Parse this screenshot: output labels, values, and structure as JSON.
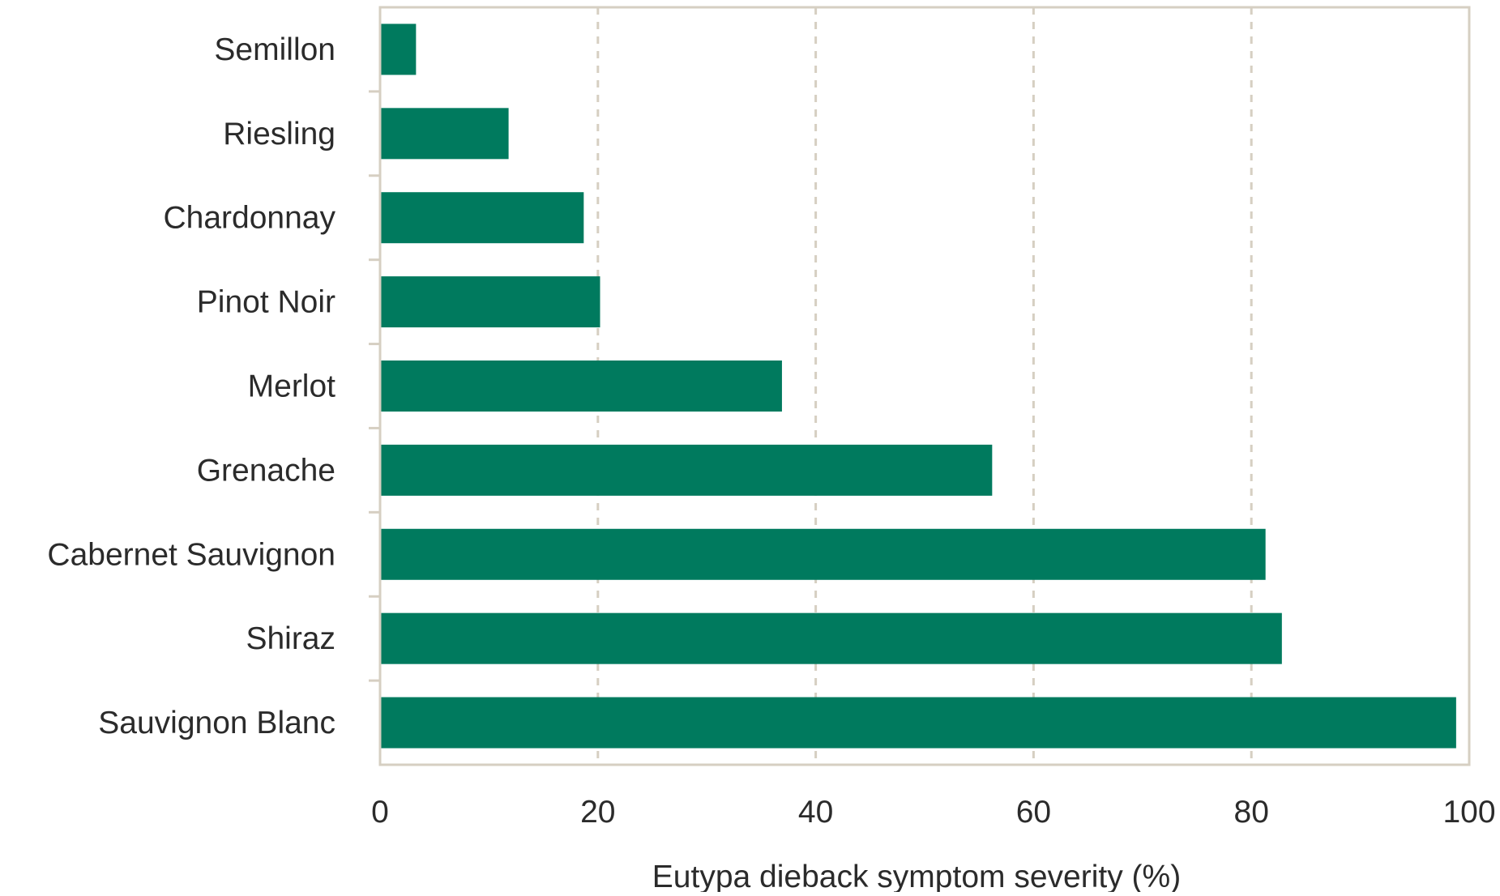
{
  "chart_data": {
    "type": "bar",
    "orientation": "horizontal",
    "categories": [
      "Semillon",
      "Riesling",
      "Chardonnay",
      "Pinot Noir",
      "Merlot",
      "Grenache",
      "Cabernet Sauvignon",
      "Shiraz",
      "Sauvignon Blanc"
    ],
    "values": [
      3.3,
      11.8,
      18.7,
      20.2,
      36.9,
      56.2,
      81.3,
      82.8,
      98.8
    ],
    "title": "",
    "xlabel": "Eutypa dieback symptom severity (%)",
    "ylabel": "",
    "xlim": [
      0,
      100
    ],
    "xticks": [
      "0",
      "20",
      "40",
      "60",
      "80",
      "100"
    ],
    "grid": "vertical dashed",
    "legend": "none",
    "colors": {
      "bar": "#007a5e",
      "frame": "#d6cfc2",
      "grid": "#d6cfc2",
      "text": "#2b2b2b"
    }
  }
}
